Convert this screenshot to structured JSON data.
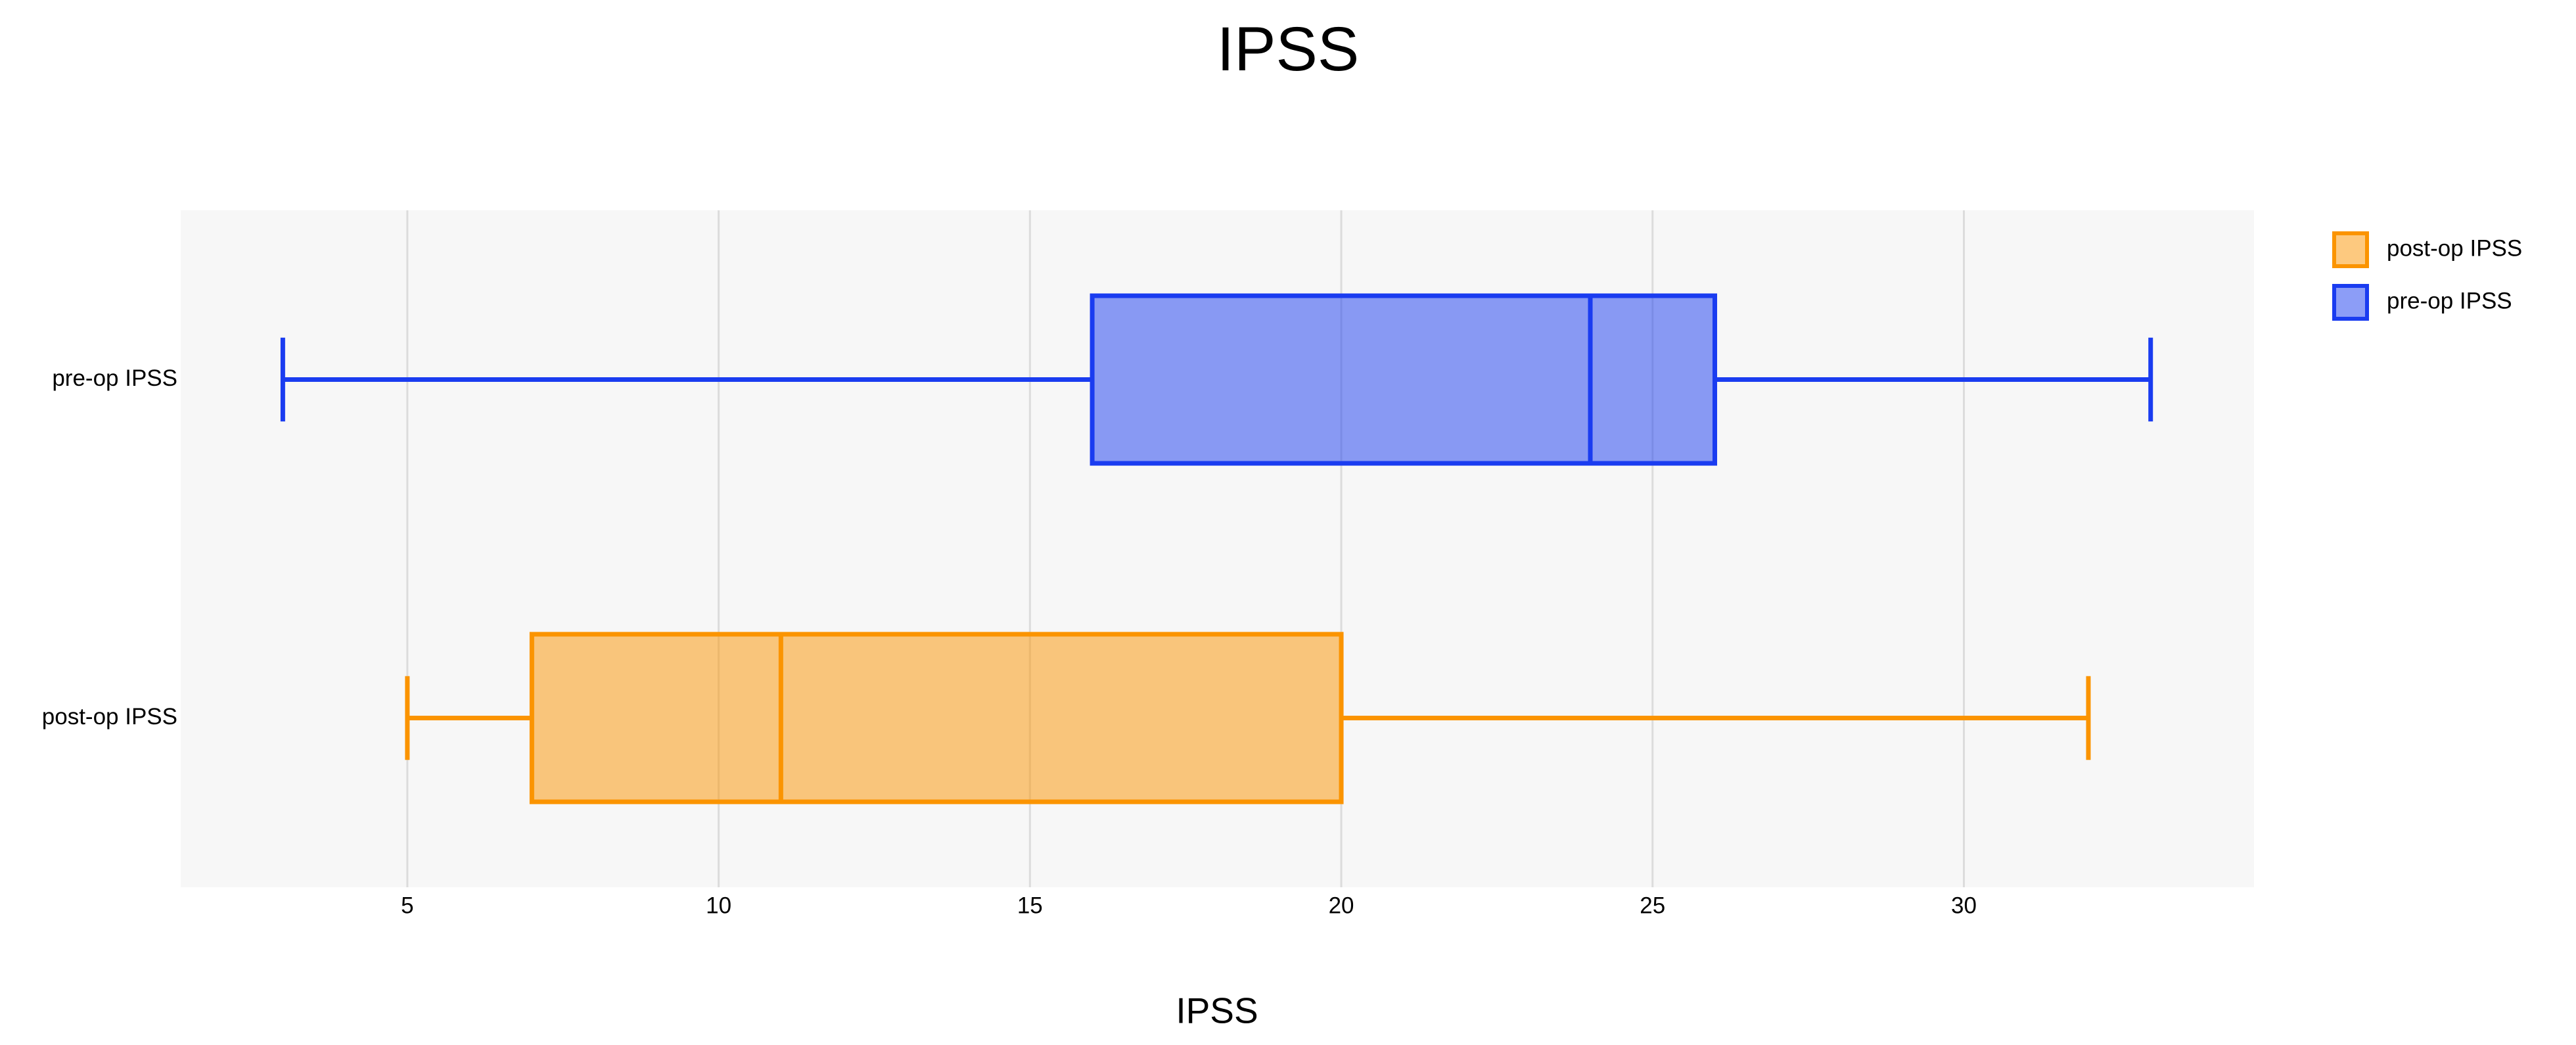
{
  "chart_data": {
    "type": "box",
    "title": "IPSS",
    "x_label": "IPSS",
    "series": [
      {
        "name": "post-op IPSS",
        "color": "#fb9400",
        "min": 5,
        "q1": 7,
        "median": 11,
        "q3": 20,
        "max": 32
      },
      {
        "name": "pre-op IPSS",
        "color": "#1a3cf0",
        "min": 3,
        "q1": 16,
        "median": 24,
        "q3": 26,
        "max": 33
      }
    ],
    "xlim": [
      1.36,
      34.66
    ],
    "xticks": [
      5,
      10,
      15,
      20,
      25,
      30
    ],
    "grid": true,
    "legend": "top-right"
  }
}
